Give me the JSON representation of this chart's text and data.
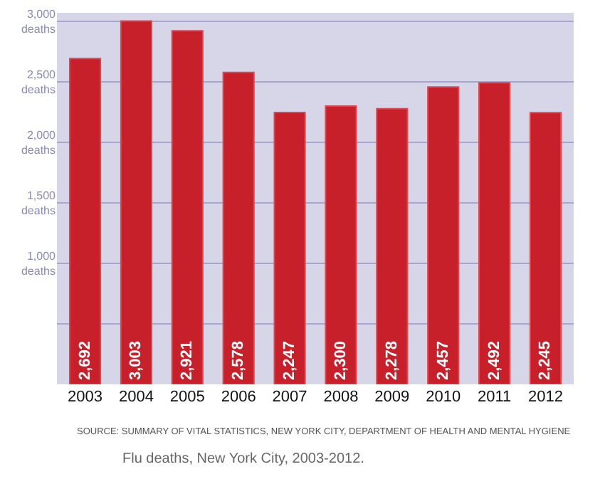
{
  "chart_data": {
    "type": "bar",
    "categories": [
      "2003",
      "2004",
      "2005",
      "2006",
      "2007",
      "2008",
      "2009",
      "2010",
      "2011",
      "2012"
    ],
    "values": [
      2692,
      3003,
      2921,
      2578,
      2247,
      2300,
      2278,
      2457,
      2492,
      2245
    ],
    "color": "#c8202a",
    "ylim": [
      0,
      3070
    ],
    "yticks": [
      {
        "value": 500,
        "label": null
      },
      {
        "value": 1000,
        "label": "1,000\ndeaths"
      },
      {
        "value": 1500,
        "label": "1,500\ndeaths"
      },
      {
        "value": 2000,
        "label": "2,000\ndeaths"
      },
      {
        "value": 2500,
        "label": "2,500\ndeaths"
      },
      {
        "value": 3000,
        "label": "3,000\ndeaths"
      }
    ],
    "grid": "y",
    "value_labels": [
      "2,692",
      "3,003",
      "2,921",
      "2,578",
      "2,247",
      "2,300",
      "2,278",
      "2,457",
      "2,492",
      "2,245"
    ],
    "annotations": [
      "SOURCE: SUMMARY OF VITAL STATISTICS, NEW YORK CITY, DEPARTMENT OF HEALTH AND MENTAL HYGIENE",
      "Flu deaths, New York City, 2003-2012."
    ]
  }
}
